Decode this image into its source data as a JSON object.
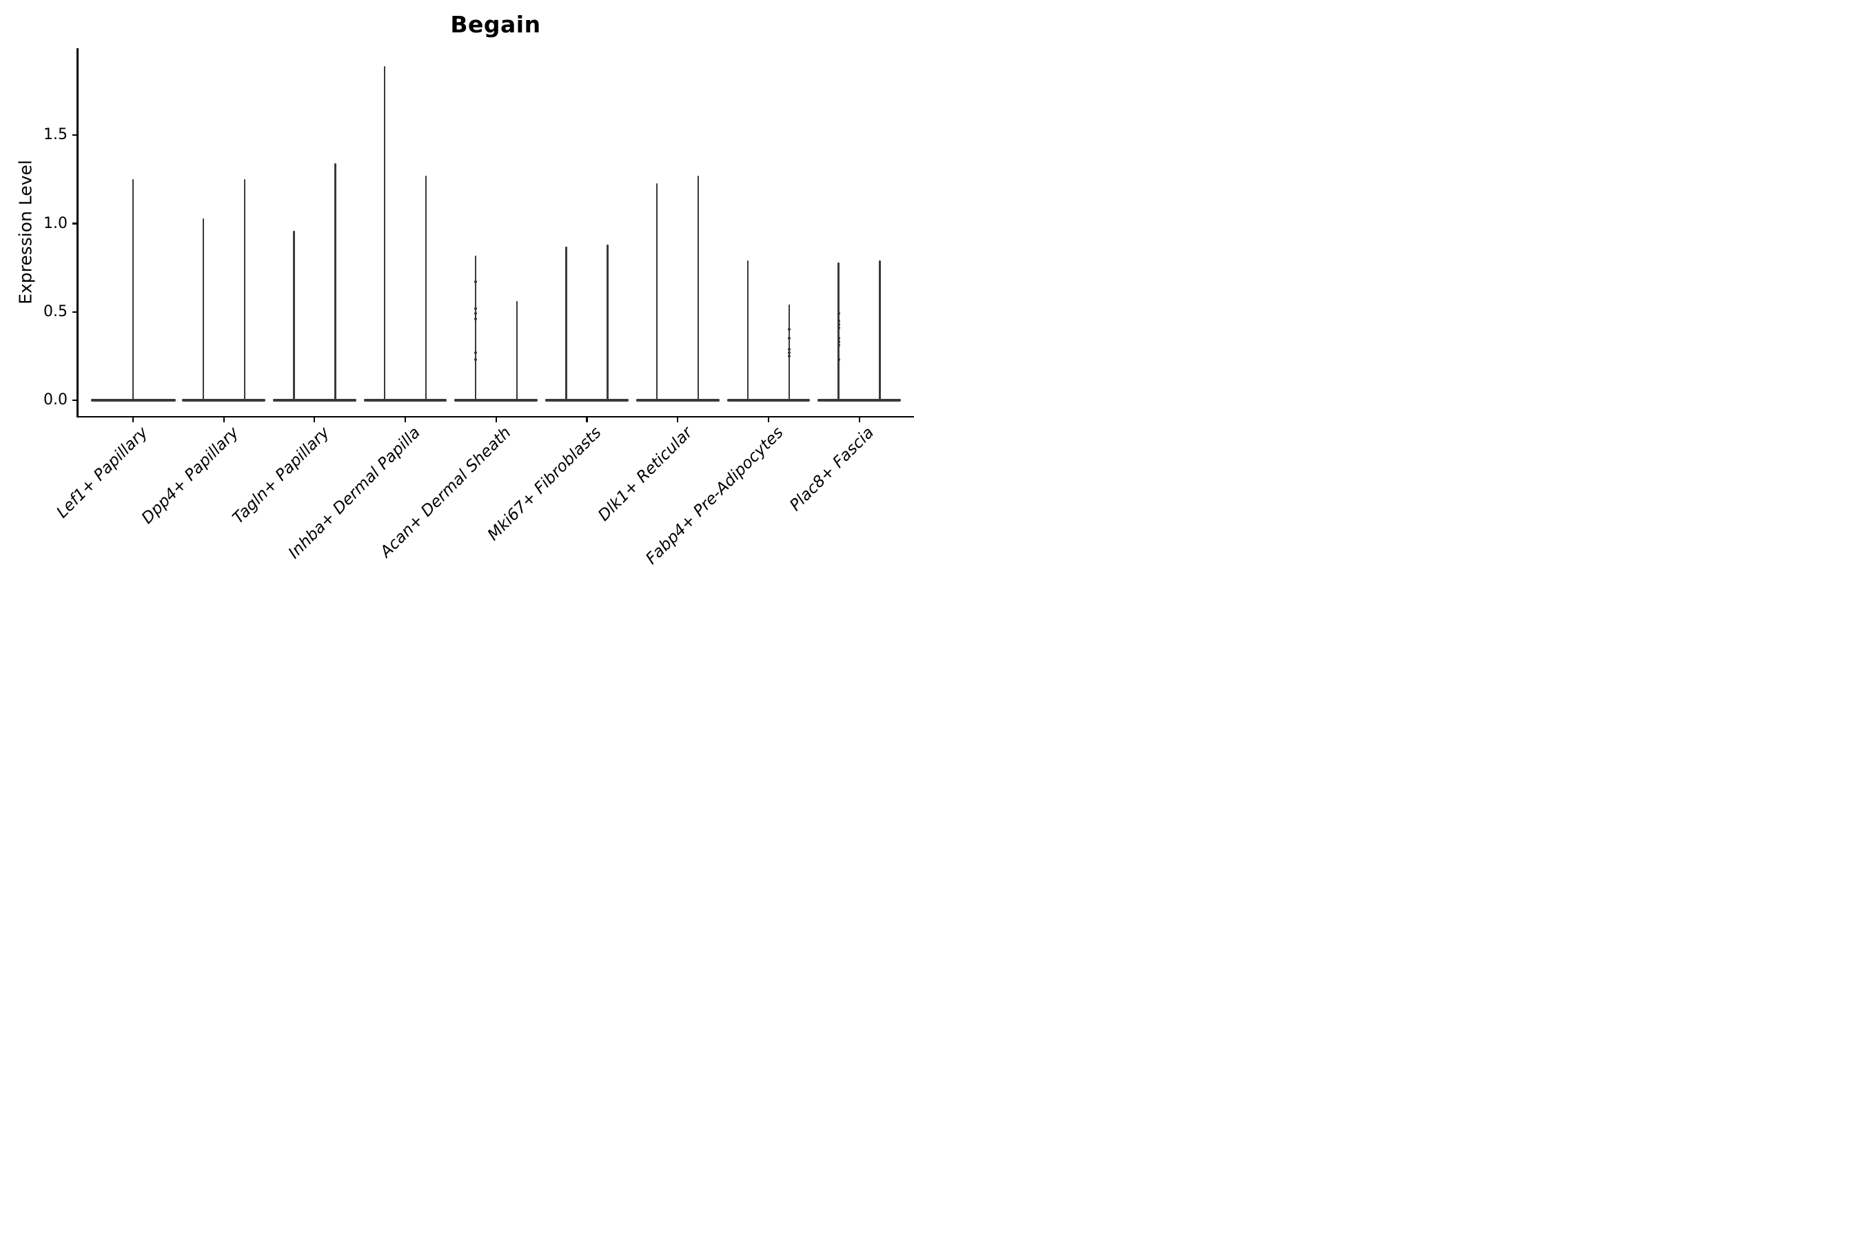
{
  "chart_data": {
    "type": "violin",
    "title": "Begain",
    "ylabel": "Expression Level",
    "xlabel": "",
    "grid": false,
    "legend": "none",
    "ylim": [
      -0.09,
      1.99
    ],
    "y_axis": {
      "ticks": [
        {
          "value": 0.0,
          "label": "0.0"
        },
        {
          "value": 0.5,
          "label": "0.5"
        },
        {
          "value": 1.0,
          "label": "1.0"
        },
        {
          "value": 1.5,
          "label": "1.5"
        }
      ]
    },
    "description": "Violin plot of Begain expression; each cell type shows needle-thin violins rising from a flat base at expression 0, max value listed per violin",
    "categories": [
      {
        "label": "Lef1+ Papillary",
        "violins": [
          {
            "max": 1.25
          }
        ]
      },
      {
        "label": "Dpp4+ Papillary",
        "violins": [
          {
            "max": 1.03
          },
          {
            "max": 1.25
          }
        ]
      },
      {
        "label": "Tagln+ Papillary",
        "violins": [
          {
            "max": 0.96
          },
          {
            "max": 1.34
          }
        ]
      },
      {
        "label": "Inhba+ Dermal Papilla",
        "violins": [
          {
            "max": 1.89
          },
          {
            "max": 1.27
          }
        ]
      },
      {
        "label": "Acan+ Dermal Sheath",
        "violins": [
          {
            "max": 0.82,
            "dots": [
              0.67,
              0.52,
              0.49,
              0.46,
              0.27,
              0.23
            ]
          },
          {
            "max": 0.56
          }
        ]
      },
      {
        "label": "Mki67+ Fibroblasts",
        "violins": [
          {
            "max": 0.87
          },
          {
            "max": 0.88
          }
        ]
      },
      {
        "label": "Dlk1+ Reticular",
        "violins": [
          {
            "max": 1.23
          },
          {
            "max": 1.27
          }
        ]
      },
      {
        "label": "Fabp4+ Pre-Adipocytes",
        "violins": [
          {
            "max": 0.79
          },
          {
            "max": 0.54,
            "dots": [
              0.4,
              0.35,
              0.29,
              0.27,
              0.25
            ]
          }
        ]
      },
      {
        "label": "Plac8+ Fascia",
        "violins": [
          {
            "max": 0.78,
            "dots": [
              0.49,
              0.45,
              0.43,
              0.41,
              0.35,
              0.33,
              0.31,
              0.23
            ]
          },
          {
            "max": 0.79
          }
        ]
      }
    ],
    "colors": {
      "violin": "#3a3a3a",
      "axis": "#000000",
      "background": "#ffffff"
    }
  }
}
